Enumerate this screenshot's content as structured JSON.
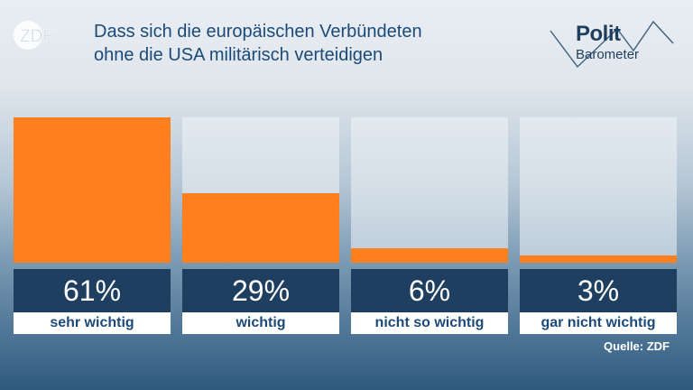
{
  "header": {
    "logo_text": "ZDF",
    "title_line1": "Dass sich die europäischen Verbündeten",
    "title_line2": "ohne die USA militärisch verteidigen",
    "brand_line1": "Polit",
    "brand_line2": "Barometer"
  },
  "footer": {
    "source": "Quelle: ZDF"
  },
  "colors": {
    "bar": "#ff7f1f",
    "value_box": "#1f3f61",
    "title": "#1c4a78"
  },
  "chart_data": {
    "type": "bar",
    "title": "Dass sich die europäischen Verbündeten ohne die USA militärisch verteidigen",
    "categories": [
      "sehr wichtig",
      "wichtig",
      "nicht so wichtig",
      "gar nicht wichtig"
    ],
    "values": [
      61,
      29,
      6,
      3
    ],
    "value_labels": [
      "61%",
      "29%",
      "6%",
      "3%"
    ],
    "unit": "%",
    "ylim": [
      0,
      61
    ],
    "grid": false
  }
}
